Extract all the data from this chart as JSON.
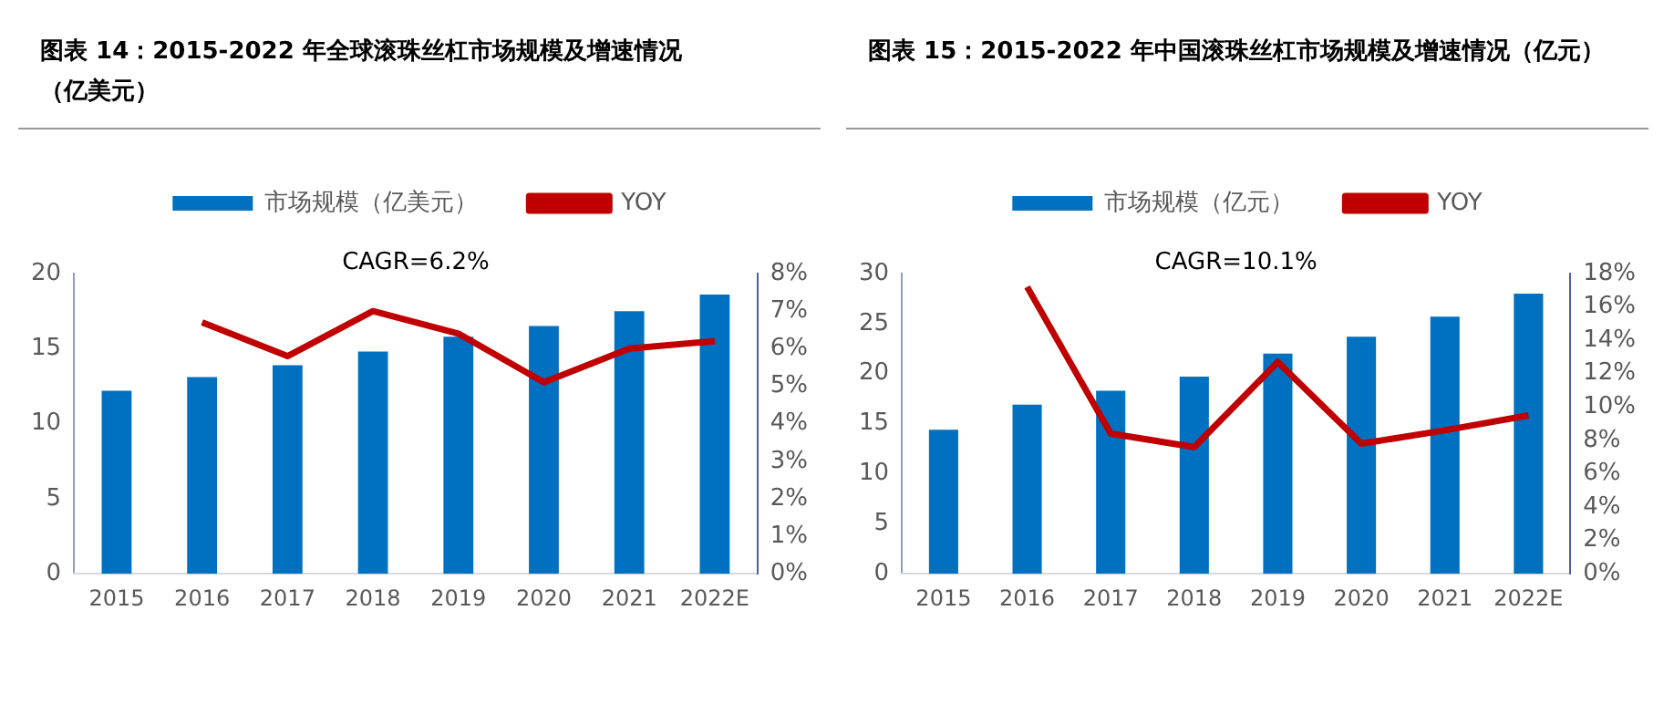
{
  "chart_data": [
    {
      "type": "bar",
      "title": "图表 14：2015-2022 年全球滚珠丝杠市场规模及增速情况（亿美元）",
      "categories": [
        "2015",
        "2016",
        "2017",
        "2018",
        "2019",
        "2020",
        "2021",
        "2022E"
      ],
      "series": [
        {
          "name": "市场规模（亿美元）",
          "color": "#0070c0",
          "values": [
            12.2,
            13.1,
            13.9,
            14.8,
            15.8,
            16.5,
            17.5,
            18.6
          ]
        },
        {
          "name": "YOY",
          "type": "line",
          "axis": "y2",
          "color": "#c00000",
          "values": [
            null,
            6.7,
            5.8,
            7.0,
            6.4,
            5.1,
            6.0,
            6.2
          ]
        }
      ],
      "ylim": [
        0,
        20
      ],
      "yticks": [
        0,
        5,
        10,
        15,
        20
      ],
      "y2lim": [
        0,
        8
      ],
      "y2ticks": [
        {
          "value": 0,
          "label": "0%"
        },
        {
          "value": 1,
          "label": "1%"
        },
        {
          "value": 2,
          "label": "2%"
        },
        {
          "value": 3,
          "label": "3%"
        },
        {
          "value": 4,
          "label": "4%"
        },
        {
          "value": 5,
          "label": "5%"
        },
        {
          "value": 6,
          "label": "6%"
        },
        {
          "value": 7,
          "label": "7%"
        },
        {
          "value": 8,
          "label": "8%"
        }
      ],
      "annotations": [
        "CAGR=6.2%"
      ],
      "legend": "top",
      "grid": false,
      "marker": "none",
      "line_style": "solid"
    },
    {
      "type": "bar",
      "title": "图表 15：2015-2022 年中国滚珠丝杠市场规模及增速情况（亿元）",
      "categories": [
        "2015",
        "2016",
        "2017",
        "2018",
        "2019",
        "2020",
        "2021",
        "2022E"
      ],
      "series": [
        {
          "name": "市场规模（亿元）",
          "color": "#0070c0",
          "values": [
            14.4,
            16.9,
            18.3,
            19.7,
            22.0,
            23.7,
            25.7,
            28.0
          ]
        },
        {
          "name": "YOY",
          "type": "line",
          "axis": "y2",
          "color": "#c00000",
          "values": [
            null,
            17.2,
            8.4,
            7.6,
            12.7,
            7.8,
            8.6,
            9.5
          ]
        }
      ],
      "ylim": [
        0,
        30
      ],
      "yticks": [
        0,
        5,
        10,
        15,
        20,
        25,
        30
      ],
      "y2lim": [
        0,
        18
      ],
      "y2ticks": [
        {
          "value": 0,
          "label": "0%"
        },
        {
          "value": 2,
          "label": "2%"
        },
        {
          "value": 4,
          "label": "4%"
        },
        {
          "value": 6,
          "label": "6%"
        },
        {
          "value": 8,
          "label": "8%"
        },
        {
          "value": 10,
          "label": "10%"
        },
        {
          "value": 12,
          "label": "12%"
        },
        {
          "value": 14,
          "label": "14%"
        },
        {
          "value": 16,
          "label": "16%"
        },
        {
          "value": 18,
          "label": "18%"
        }
      ],
      "annotations": [
        "CAGR=10.1%"
      ],
      "legend": "top",
      "grid": false,
      "marker": "none",
      "line_style": "solid"
    }
  ]
}
